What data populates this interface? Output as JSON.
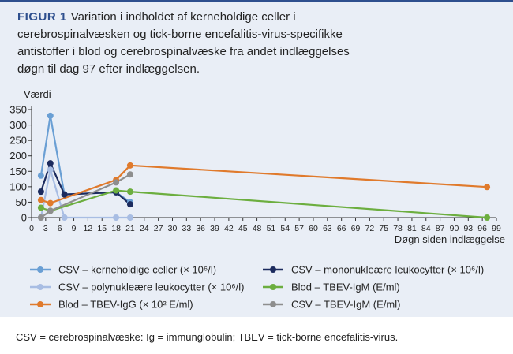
{
  "figure": {
    "label": "FIGUR 1",
    "title": "Variation i indholdet af kerneholdige celler i cerebrospinalvæsken og tick-borne encefalitis-virus-specifikke antistoffer i blod og cerebrospinalvæske fra andet indlæggelses døgn til dag 97 efter indlæggelsen.",
    "footnote": "CSV = cerebrospinalvæske: Ig = immunglobulin; TBEV = tick-borne encefalitis-virus."
  },
  "chart_data": {
    "type": "line",
    "title": "",
    "xlabel": "Døgn siden indlæggelse",
    "ylabel": "Værdi",
    "xlim": [
      0,
      99
    ],
    "ylim": [
      0,
      350
    ],
    "x_ticks": [
      0,
      3,
      6,
      9,
      12,
      15,
      18,
      21,
      24,
      27,
      30,
      33,
      36,
      39,
      42,
      45,
      48,
      51,
      54,
      57,
      60,
      63,
      66,
      69,
      72,
      75,
      78,
      81,
      84,
      87,
      90,
      93,
      96,
      99
    ],
    "y_ticks": [
      0,
      50,
      100,
      150,
      200,
      250,
      300,
      350
    ],
    "grid": false,
    "legend_position": "bottom",
    "series": [
      {
        "name": "CSV – kerneholdige celler (× 10⁶/l)",
        "color": "#6a9fd4",
        "points": [
          [
            2,
            136
          ],
          [
            4,
            330
          ],
          [
            7,
            75
          ],
          [
            18,
            82
          ],
          [
            21,
            50
          ]
        ]
      },
      {
        "name": "CSV – mononukleære leukocytter (× 10⁶/l)",
        "color": "#1c2b5e",
        "points": [
          [
            2,
            84
          ],
          [
            4,
            176
          ],
          [
            7,
            75
          ],
          [
            18,
            82
          ],
          [
            21,
            43
          ]
        ]
      },
      {
        "name": "CSV – polynukleære leukocytter (× 10⁶/l)",
        "color": "#a8bde3",
        "points": [
          [
            2,
            0
          ],
          [
            4,
            155
          ],
          [
            7,
            0
          ],
          [
            18,
            0
          ],
          [
            21,
            0
          ]
        ]
      },
      {
        "name": "Blod – TBEV-IgM  (E/ml)",
        "color": "#6cae3f",
        "points": [
          [
            2,
            32
          ],
          [
            4,
            22
          ],
          [
            18,
            88
          ],
          [
            21,
            84
          ],
          [
            97,
            0
          ]
        ]
      },
      {
        "name": "Blod – TBEV-IgG  (× 10² E/ml)",
        "color": "#e07a2c",
        "points": [
          [
            2,
            57
          ],
          [
            4,
            47
          ],
          [
            18,
            122
          ],
          [
            21,
            169
          ],
          [
            97,
            99
          ]
        ]
      },
      {
        "name": "CSV – TBEV-IgM (E/ml)",
        "color": "#8e8e8e",
        "points": [
          [
            2,
            0
          ],
          [
            4,
            22
          ],
          [
            18,
            114
          ],
          [
            21,
            140
          ]
        ]
      }
    ]
  }
}
